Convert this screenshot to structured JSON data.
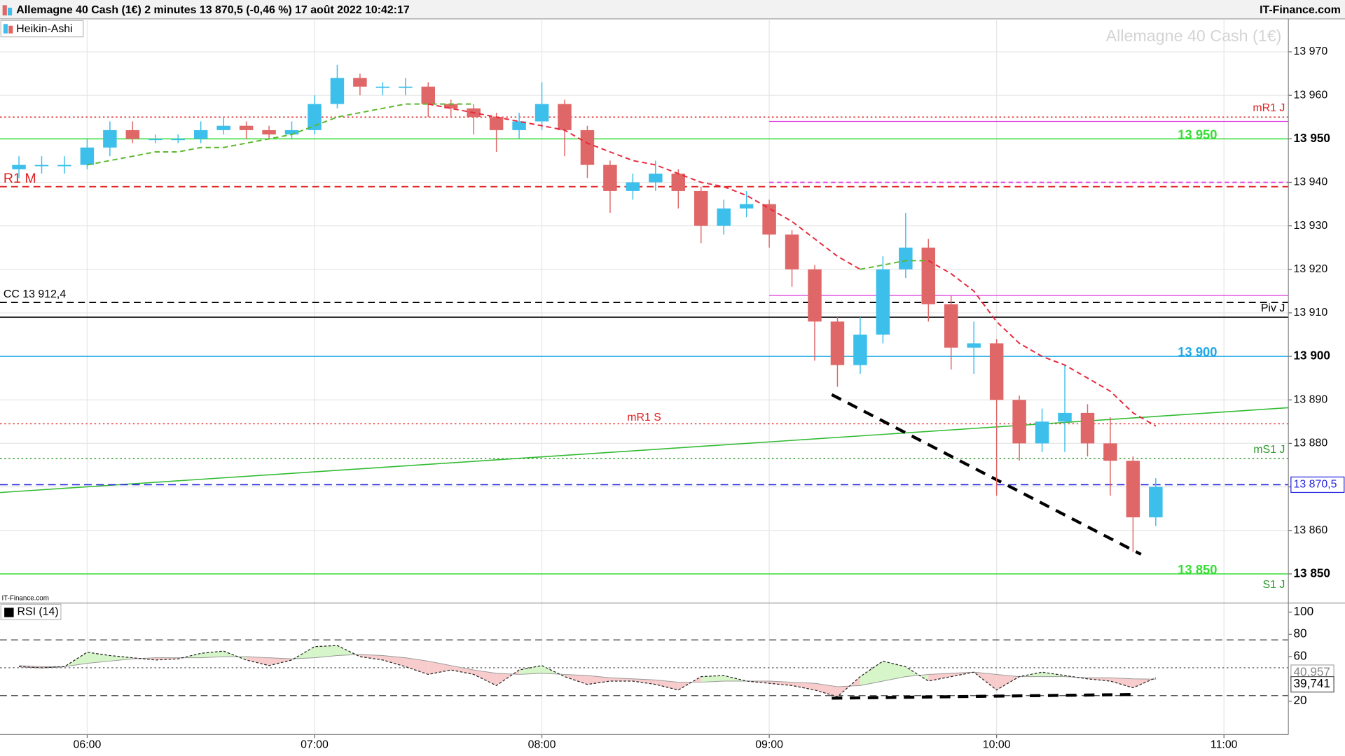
{
  "header": {
    "title": "Allemagne 40 Cash (1€) 2 minutes 13 870,5 (-0,46 %) 17 août 2022 10:42:17",
    "brand": "IT-Finance.com"
  },
  "chart_data": {
    "type": "candlestick",
    "legend": "Heikin-Ashi",
    "watermark": "Allemagne 40 Cash (1€)",
    "source": "IT-Finance.com",
    "x": [
      342,
      348,
      354,
      360,
      366,
      372,
      378,
      384,
      390,
      396,
      402,
      408,
      414,
      420,
      426,
      432,
      438,
      444,
      450,
      456,
      462,
      468,
      474,
      480,
      486,
      492,
      498,
      504,
      510,
      516,
      522,
      528,
      534,
      540,
      546,
      552,
      558,
      564,
      570,
      576,
      582,
      588,
      594,
      600,
      606,
      612,
      618,
      624,
      630,
      636,
      642
    ],
    "open": [
      13943,
      13944,
      13944,
      13944,
      13948,
      13952,
      13950,
      13950,
      13950,
      13952,
      13953,
      13952,
      13951,
      13952,
      13958,
      13964,
      13962,
      13962,
      13962,
      13958,
      13957,
      13955,
      13952,
      13954,
      13958,
      13952,
      13944,
      13938,
      13940,
      13942,
      13938,
      13930,
      13934,
      13935,
      13928,
      13920,
      13908,
      13898,
      13905,
      13920,
      13925,
      13912,
      13902,
      13903,
      13890,
      13880,
      13885,
      13887,
      13880,
      13876,
      13863
    ],
    "high": [
      13946,
      13946,
      13946,
      13950,
      13954,
      13954,
      13951,
      13951,
      13954,
      13955,
      13954,
      13953,
      13954,
      13960,
      13967,
      13965,
      13963,
      13964,
      13963,
      13959,
      13958,
      13956,
      13956,
      13963,
      13959,
      13953,
      13945,
      13942,
      13945,
      13943,
      13939,
      13936,
      13938,
      13936,
      13929,
      13921,
      13909,
      13909,
      13923,
      13933,
      13927,
      13914,
      13908,
      13904,
      13891,
      13888,
      13898,
      13889,
      13886,
      13877,
      13872
    ],
    "low": [
      13941,
      13942,
      13942,
      13943,
      13946,
      13949,
      13949,
      13949,
      13949,
      13951,
      13950,
      13950,
      13950,
      13951,
      13957,
      13960,
      13960,
      13960,
      13955,
      13955,
      13951,
      13947,
      13950,
      13952,
      13946,
      13941,
      13933,
      13936,
      13938,
      13934,
      13926,
      13928,
      13932,
      13925,
      13916,
      13899,
      13893,
      13896,
      13903,
      13918,
      13908,
      13897,
      13896,
      13868,
      13876,
      13878,
      13878,
      13877,
      13868,
      13855,
      13861
    ],
    "close": [
      13944,
      13944,
      13944,
      13948,
      13952,
      13950,
      13950,
      13950,
      13952,
      13953,
      13952,
      13951,
      13952,
      13958,
      13964,
      13962,
      13962,
      13962,
      13958,
      13957,
      13955,
      13952,
      13954,
      13958,
      13952,
      13944,
      13938,
      13940,
      13942,
      13938,
      13930,
      13934,
      13935,
      13928,
      13920,
      13908,
      13898,
      13905,
      13920,
      13925,
      13912,
      13902,
      13903,
      13890,
      13880,
      13885,
      13887,
      13880,
      13876,
      13863,
      13870
    ],
    "up_color": "#3cbfeb",
    "down_color": "#e06767",
    "xlim": [
      337,
      677
    ],
    "xticks": [
      {
        "value": 360,
        "label": "06:00"
      },
      {
        "value": 420,
        "label": "07:00"
      },
      {
        "value": 480,
        "label": "08:00"
      },
      {
        "value": 540,
        "label": "09:00"
      },
      {
        "value": 600,
        "label": "10:00"
      },
      {
        "value": 660,
        "label": "11:00"
      }
    ],
    "ylim": [
      13844,
      13976
    ],
    "yticks": [
      {
        "value": 13850,
        "label": "13 850"
      },
      {
        "value": 13860,
        "label": "13 860"
      },
      {
        "value": 13870,
        "label": "13 870"
      },
      {
        "value": 13880,
        "label": "13 880"
      },
      {
        "value": 13890,
        "label": "13 890"
      },
      {
        "value": 13900,
        "label": "13 900"
      },
      {
        "value": 13910,
        "label": "13 910"
      },
      {
        "value": 13920,
        "label": "13 920"
      },
      {
        "value": 13930,
        "label": "13 930"
      },
      {
        "value": 13940,
        "label": "13 940"
      },
      {
        "value": 13950,
        "label": "13 950"
      },
      {
        "value": 13960,
        "label": "13 960"
      },
      {
        "value": 13970,
        "label": "13 970"
      }
    ],
    "grid": true,
    "moving_averages": [
      {
        "color": "#5cb82c",
        "values": [
          null,
          null,
          null,
          13944,
          13945,
          13946,
          13947,
          13947,
          13948,
          13948,
          13949,
          13950,
          13951,
          13953,
          13955,
          13956,
          13957,
          13958,
          13958,
          13958,
          13958,
          null,
          null,
          null,
          null,
          null,
          null,
          null,
          null,
          null,
          null,
          null,
          null,
          null,
          null,
          null,
          null,
          13920,
          13921,
          13922,
          13922,
          null,
          null,
          null,
          null,
          null,
          null,
          null,
          null,
          null,
          null
        ]
      },
      {
        "color": "#e8283c",
        "values": [
          null,
          null,
          null,
          null,
          null,
          null,
          null,
          null,
          null,
          null,
          null,
          null,
          null,
          null,
          null,
          null,
          null,
          null,
          13958,
          13957,
          13956,
          13955,
          13954,
          13953,
          13952,
          13949,
          13947,
          13945,
          13944,
          13942,
          13940,
          13939,
          13937,
          13934,
          13931,
          13927,
          13923,
          13920,
          null,
          null,
          13922,
          13919,
          13915,
          13908,
          13903,
          13900,
          13898,
          13895,
          13892,
          13887,
          13884
        ]
      }
    ],
    "levels": [
      {
        "value": 13955,
        "label": "mR1 J",
        "color": "#e02020",
        "style": "dotted",
        "label_pos": "right"
      },
      {
        "value": 13950,
        "label": "13 950",
        "color": "#33dd33",
        "style": "solid",
        "label_pos": "mid-right"
      },
      {
        "value": 13939,
        "label": "R1 M",
        "color": "#e02020",
        "style": "dashed",
        "label_pos": "left"
      },
      {
        "value": 13912.4,
        "label": "CC 13 912,4",
        "color": "#000000",
        "style": "dashed",
        "label_pos": "left"
      },
      {
        "value": 13909,
        "label": "Piv J",
        "color": "#000000",
        "style": "solid",
        "label_pos": "right"
      },
      {
        "value": 13900,
        "label": "13 900",
        "color": "#1ea8e8",
        "style": "solid",
        "label_pos": "mid-right"
      },
      {
        "value": 13884.5,
        "label": "mR1 S",
        "color": "#e02020",
        "style": "dotted",
        "label_pos": "center"
      },
      {
        "value": 13876.5,
        "label": "mS1 J",
        "color": "#2a9a2a",
        "style": "dotted",
        "label_pos": "right"
      },
      {
        "value": 13850,
        "label": "13 850",
        "color": "#33dd33",
        "style": "solid",
        "label_pos": "mid-right"
      },
      {
        "value": 13845.5,
        "label": "S1 J",
        "color": "#2a9a2a",
        "style": "none",
        "label_pos": "right"
      }
    ],
    "segments": [
      {
        "x": [
          540,
          677
        ],
        "y": [
          13954,
          13954
        ],
        "color": "#e040e0",
        "style": "solid",
        "width": 1
      },
      {
        "x": [
          540,
          677
        ],
        "y": [
          13940,
          13940
        ],
        "color": "#e040e0",
        "style": "dashed",
        "width": 1.5
      },
      {
        "x": [
          540,
          677
        ],
        "y": [
          13914,
          13914
        ],
        "color": "#e040e0",
        "style": "solid",
        "width": 1
      },
      {
        "x": [
          337,
          677
        ],
        "y": [
          13868.7,
          13888.2
        ],
        "color": "#33bb33",
        "style": "solid",
        "width": 1.3
      },
      {
        "x": [
          556.5,
          638.1
        ],
        "y": [
          13891.2,
          13854.5
        ],
        "color": "#000000",
        "style": "dashed",
        "width": 3.5
      }
    ],
    "last_price": {
      "value": 13870.5,
      "label": "13 870,5",
      "color": "#2222dd"
    },
    "rsi": {
      "legend": "RSI (14)",
      "values": [
        51,
        50,
        51,
        64,
        61,
        59,
        57,
        58,
        63,
        65,
        57,
        52,
        57,
        69,
        70,
        60,
        57,
        51,
        44,
        48,
        44,
        34,
        48,
        52,
        42,
        35,
        38,
        38,
        35,
        30,
        42,
        43,
        38,
        36,
        34,
        30,
        24,
        42,
        56,
        51,
        38,
        42,
        46,
        30,
        42,
        46,
        43,
        40,
        38,
        32,
        40.957
      ],
      "ma": [
        52,
        51,
        51,
        54,
        56,
        58,
        59,
        59,
        59,
        60,
        60,
        59,
        58,
        59,
        61,
        62,
        61,
        59,
        56,
        52,
        48,
        45,
        44,
        45,
        44,
        43,
        41,
        40,
        39,
        37,
        37,
        38,
        38,
        38,
        37,
        36,
        33,
        34,
        38,
        42,
        44,
        45,
        46,
        44,
        42,
        42,
        42,
        41,
        41,
        40,
        39.741
      ],
      "ylim": [
        -10,
        107
      ],
      "yticks": [
        20,
        60,
        80,
        100
      ],
      "levels": [
        {
          "value": 75,
          "style": "dashed"
        },
        {
          "value": 50,
          "style": "dotted"
        },
        {
          "value": 25,
          "style": "dashed"
        }
      ],
      "last_labels": [
        {
          "value": 40.957,
          "label": "40,957"
        },
        {
          "value": 39.741,
          "label": "39,741"
        }
      ],
      "segments": [
        {
          "x": [
            556.5,
            635.8
          ],
          "y": [
            22.7,
            26
          ],
          "color": "#000000",
          "style": "dashed",
          "width": 3.5
        }
      ]
    }
  }
}
